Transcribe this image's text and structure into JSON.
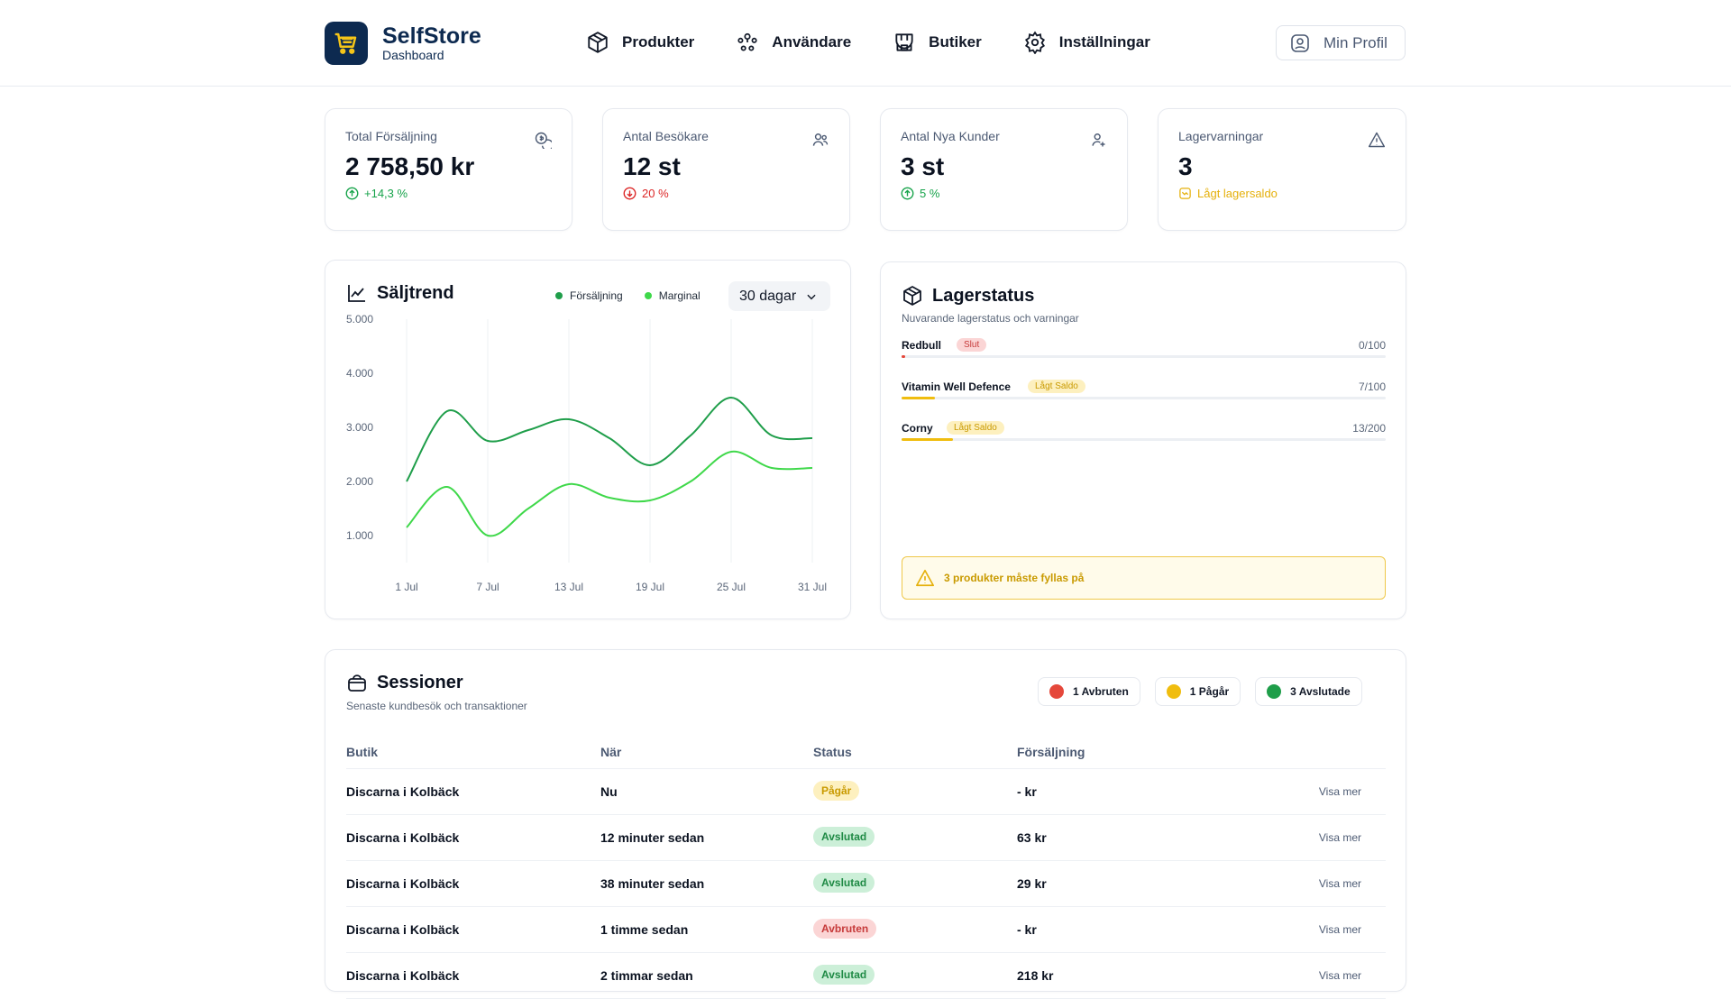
{
  "brand": {
    "name": "SelfStore",
    "subtitle": "Dashboard"
  },
  "nav": [
    {
      "label": "Produkter",
      "icon": "box-icon"
    },
    {
      "label": "Användare",
      "icon": "users-icon"
    },
    {
      "label": "Butiker",
      "icon": "store-icon"
    },
    {
      "label": "Inställningar",
      "icon": "gear-icon"
    }
  ],
  "profile": {
    "label": "Min Profil"
  },
  "stats": [
    {
      "label": "Total Försäljning",
      "value": "2 758,50 kr",
      "delta": "+14,3 %",
      "trend": "up",
      "color": "#16a34a",
      "icon": "coins-icon"
    },
    {
      "label": "Antal Besökare",
      "value": "12 st",
      "delta": "20 %",
      "trend": "down",
      "color": "#dc2626",
      "icon": "users-icon"
    },
    {
      "label": "Antal Nya Kunder",
      "value": "3 st",
      "delta": "5 %",
      "trend": "up",
      "color": "#16a34a",
      "icon": "user-plus-icon"
    },
    {
      "label": "Lagervarningar",
      "value": "3",
      "delta": "Lågt lagersaldo",
      "trend": "warn",
      "color": "#e5b00b",
      "icon": "warning-icon"
    }
  ],
  "sales_trend": {
    "title": "Säljtrend",
    "range": "30 dagar",
    "legend": [
      {
        "name": "Försäljning",
        "color": "#1f9e4a"
      },
      {
        "name": "Marginal",
        "color": "#3fd84a"
      }
    ]
  },
  "chart_data": {
    "type": "line",
    "x": [
      "1 Jul",
      "4 Jul",
      "7 Jul",
      "10 Jul",
      "13 Jul",
      "16 Jul",
      "19 Jul",
      "22 Jul",
      "25 Jul",
      "28 Jul",
      "31 Jul"
    ],
    "xticks": [
      "1 Jul",
      "7 Jul",
      "13 Jul",
      "19 Jul",
      "25 Jul",
      "31 Jul"
    ],
    "yticks": [
      "1.000",
      "2.000",
      "3.000",
      "4.000",
      "5.000"
    ],
    "ylim": [
      500,
      5000
    ],
    "series": [
      {
        "name": "Försäljning",
        "values": [
          2000,
          3300,
          2750,
          2950,
          3150,
          2800,
          2300,
          2850,
          3550,
          2850,
          2800
        ],
        "color": "#1f9e4a"
      },
      {
        "name": "Marginal",
        "values": [
          1150,
          1900,
          1000,
          1500,
          1950,
          1700,
          1650,
          2000,
          2550,
          2250,
          2250
        ],
        "color": "#3fd84a"
      }
    ],
    "grid": "vertical"
  },
  "stock": {
    "title": "Lagerstatus",
    "subtitle": "Nuvarande lagerstatus och varningar",
    "items": [
      {
        "name": "Redbull",
        "badge": "Slut",
        "qty": "0/100",
        "level": 0.0,
        "badge_bg": "#fbd5d5",
        "badge_fg": "#c63a3a",
        "bar": "#e5483b"
      },
      {
        "name": "Vitamin Well Defence",
        "badge": "Lågt Saldo",
        "qty": "7/100",
        "level": 0.07,
        "badge_bg": "#fdf0bf",
        "badge_fg": "#c99a00",
        "bar": "#f0bd0f"
      },
      {
        "name": "Corny",
        "badge": "Lågt Saldo",
        "qty": "13/200",
        "level": 0.065,
        "badge_bg": "#fdf0bf",
        "badge_fg": "#c99a00",
        "bar": "#f0bd0f"
      }
    ],
    "warning": "3 produkter måste fyllas på"
  },
  "sessions": {
    "title": "Sessioner",
    "subtitle": "Senaste kundbesök och transaktioner",
    "badges": [
      {
        "label": "1 Avbruten",
        "color": "#e5483b"
      },
      {
        "label": "1 Pågår",
        "color": "#f0bd0f"
      },
      {
        "label": "3 Avslutade",
        "color": "#1f9e4a"
      }
    ],
    "columns": [
      "Butik",
      "När",
      "Status",
      "Försäljning"
    ],
    "rows": [
      {
        "store": "Discarna i Kolbäck",
        "when": "Nu",
        "status": "Pågår",
        "sales": "- kr",
        "action": "Visa mer",
        "bg": "#fdf0bf",
        "fg": "#c99a00"
      },
      {
        "store": "Discarna i Kolbäck",
        "when": "12 minuter sedan",
        "status": "Avslutad",
        "sales": "63 kr",
        "action": "Visa mer",
        "bg": "#ccefd8",
        "fg": "#1f8a45"
      },
      {
        "store": "Discarna i Kolbäck",
        "when": "38 minuter sedan",
        "status": "Avslutad",
        "sales": "29 kr",
        "action": "Visa mer",
        "bg": "#ccefd8",
        "fg": "#1f8a45"
      },
      {
        "store": "Discarna i Kolbäck",
        "when": "1 timme sedan",
        "status": "Avbruten",
        "sales": "- kr",
        "action": "Visa mer",
        "bg": "#fbd5d5",
        "fg": "#c63a3a"
      },
      {
        "store": "Discarna i Kolbäck",
        "when": "2 timmar sedan",
        "status": "Avslutad",
        "sales": "218 kr",
        "action": "Visa mer",
        "bg": "#ccefd8",
        "fg": "#1f8a45"
      }
    ]
  }
}
